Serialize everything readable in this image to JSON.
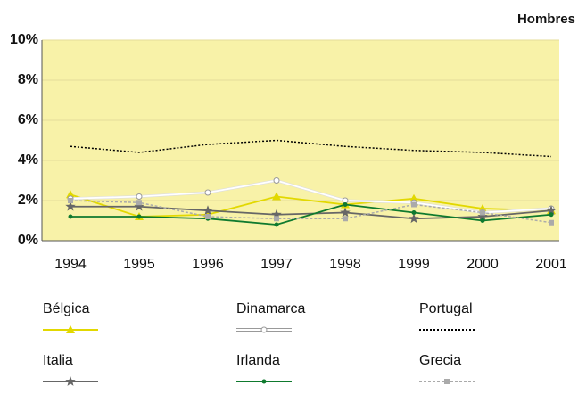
{
  "chart_data": {
    "type": "line",
    "title": "Hombres",
    "categories": [
      "1994",
      "1995",
      "1996",
      "1997",
      "1998",
      "1999",
      "2000",
      "2001"
    ],
    "ylim": [
      0,
      10
    ],
    "yticks": [
      {
        "value": 0,
        "label": "0%"
      },
      {
        "value": 2,
        "label": "2%"
      },
      {
        "value": 4,
        "label": "4%"
      },
      {
        "value": 6,
        "label": "6%"
      },
      {
        "value": 8,
        "label": "8%"
      },
      {
        "value": 10,
        "label": "10%"
      }
    ],
    "grid": true,
    "series": [
      {
        "name": "Bélgica",
        "color": "#e2d800",
        "marker": "triangle",
        "dash": "solid",
        "values": [
          2.3,
          1.2,
          1.3,
          2.2,
          1.8,
          2.1,
          1.6,
          1.5
        ]
      },
      {
        "name": "Dinamarca",
        "color": "#ffffff",
        "marker": "circle",
        "dash": "solid",
        "values": [
          2.1,
          2.2,
          2.4,
          3.0,
          2.0,
          1.9,
          1.4,
          1.6
        ]
      },
      {
        "name": "Portugal",
        "color": "#000000",
        "marker": "none",
        "dash": "dotted",
        "values": [
          4.7,
          4.4,
          4.8,
          5.0,
          4.7,
          4.5,
          4.4,
          4.2
        ]
      },
      {
        "name": "Italia",
        "color": "#666666",
        "marker": "star",
        "dash": "solid",
        "values": [
          1.7,
          1.7,
          1.5,
          1.3,
          1.4,
          1.1,
          1.2,
          1.5
        ]
      },
      {
        "name": "Irlanda",
        "color": "#0f7a2e",
        "marker": "dot",
        "dash": "solid",
        "values": [
          1.2,
          1.2,
          1.1,
          0.8,
          1.8,
          1.4,
          1.0,
          1.3
        ]
      },
      {
        "name": "Grecia",
        "color": "#aaaaaa",
        "marker": "square",
        "dash": "dashed",
        "values": [
          2.0,
          1.9,
          1.2,
          1.1,
          1.1,
          1.8,
          1.4,
          0.9
        ]
      }
    ]
  }
}
